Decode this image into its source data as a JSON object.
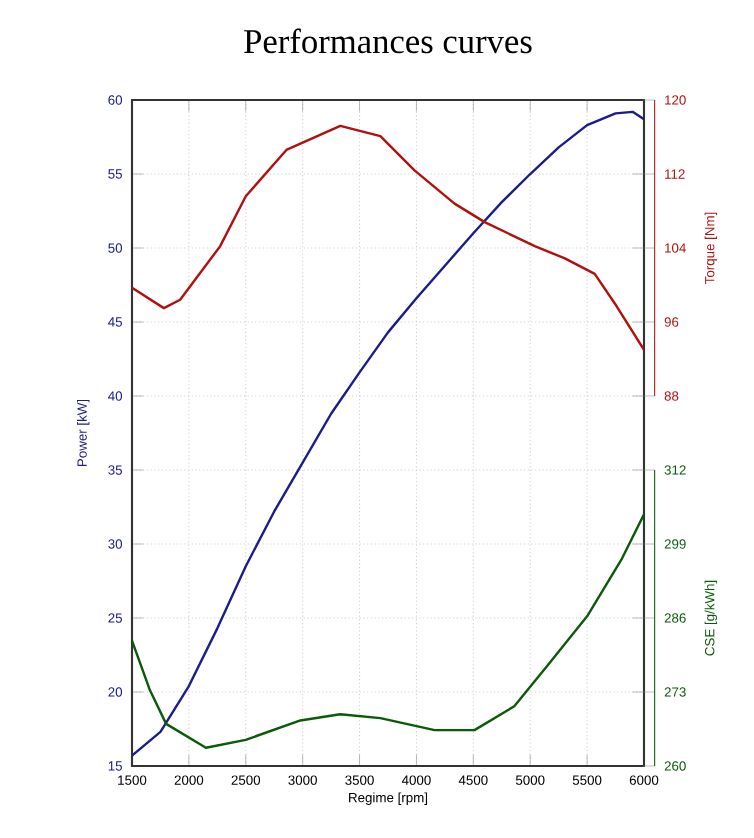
{
  "chart_data": {
    "type": "line",
    "title": "Performances curves",
    "xlabel": "Regime [rpm]",
    "ylabel": "Power [kW]",
    "y2label": "Torque [Nm]",
    "y3label": "CSE [g/kWh]",
    "xlim": [
      1500,
      6000
    ],
    "xticks": [
      1500,
      2000,
      2500,
      3000,
      3500,
      4000,
      4500,
      5000,
      5500,
      6000
    ],
    "ylim": [
      15,
      60
    ],
    "yticks": [
      15,
      20,
      25,
      30,
      35,
      40,
      45,
      50,
      55,
      60
    ],
    "y2lim": [
      88,
      120
    ],
    "y2ticks": [
      88,
      96,
      104,
      112,
      120
    ],
    "y3lim": [
      260,
      312
    ],
    "y3ticks": [
      260,
      273,
      286,
      299,
      312
    ],
    "grid": true,
    "series": [
      {
        "color": "#1c1c8a",
        "axis": "y",
        "x": [
          1500,
          1750,
          2000,
          2250,
          2500,
          2750,
          3000,
          3250,
          3500,
          3750,
          4000,
          4250,
          4500,
          4750,
          5000,
          5250,
          5500,
          5750,
          5900,
          6000
        ],
        "values": [
          15.7,
          17.3,
          20.4,
          24.3,
          28.5,
          32.2,
          35.5,
          38.8,
          41.6,
          44.3,
          46.6,
          48.8,
          51,
          53.1,
          55,
          56.8,
          58.3,
          59.1,
          59.2,
          58.7
        ]
      },
      {
        "color": "#b01010",
        "axis": "y2",
        "x": [
          1500,
          1780,
          1923,
          2275,
          2500,
          2857,
          3331,
          3683,
          3983,
          4335,
          4600,
          5040,
          5300,
          5567,
          5760,
          6000
        ],
        "values": [
          99.7,
          97.5,
          98.4,
          104.2,
          109.6,
          114.6,
          117.2,
          116.1,
          112.4,
          108.8,
          106.8,
          104.2,
          102.9,
          101.2,
          97.7,
          93
        ]
      },
      {
        "color": "#0a5a0a",
        "axis": "y3",
        "x": [
          1500,
          1658,
          1800,
          2150,
          2500,
          2980,
          3330,
          3683,
          4160,
          4510,
          4860,
          5145,
          5500,
          5800,
          6000
        ],
        "values": [
          282,
          273.3,
          267.4,
          263.2,
          264.6,
          268,
          269.1,
          268.4,
          266.3,
          266.3,
          270.5,
          277.5,
          286.3,
          296.2,
          304.2
        ]
      }
    ]
  }
}
